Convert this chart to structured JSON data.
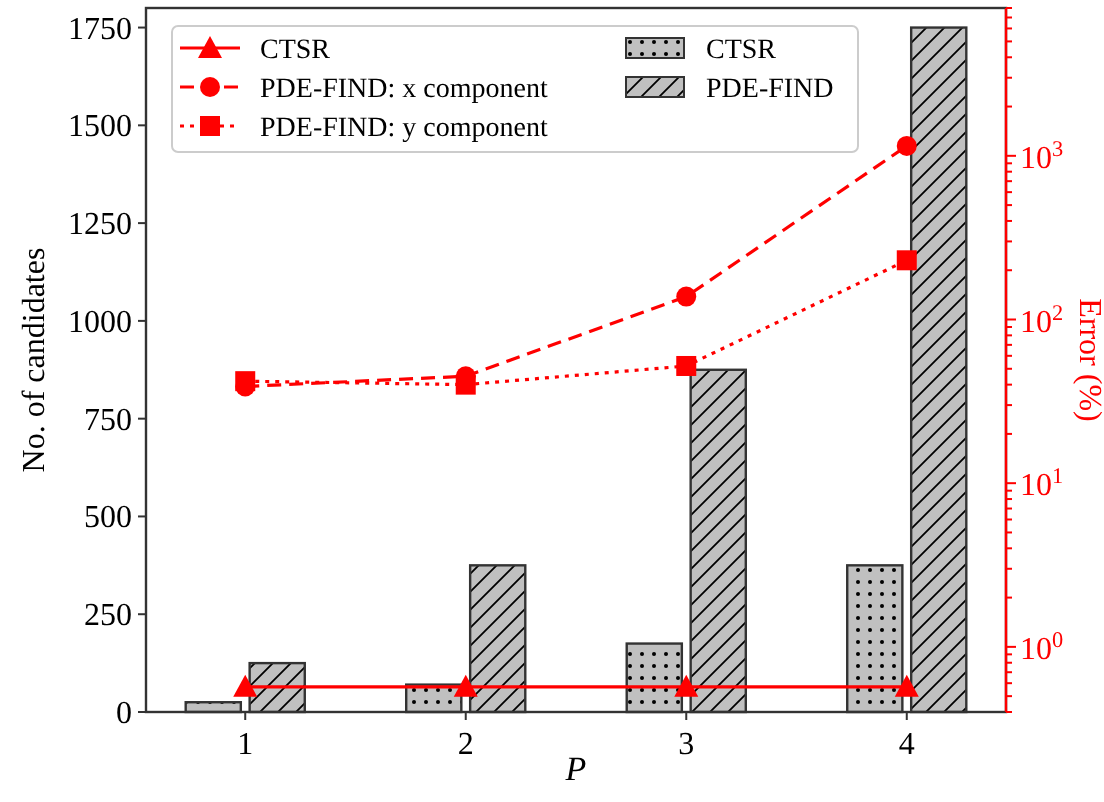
{
  "chart_data": {
    "type": "bar",
    "xlabel": "P",
    "ylabel": "No. of candidates",
    "y2label": "Error (%)",
    "x": [
      1,
      2,
      3,
      4
    ],
    "xlim": [
      0.55,
      4.45
    ],
    "xticks": [
      1,
      2,
      3,
      4
    ],
    "ylim": [
      0,
      1800
    ],
    "yticks": [
      0,
      250,
      500,
      750,
      1000,
      1250,
      1500,
      1750
    ],
    "y2lim": [
      0.4,
      8000
    ],
    "log": "y2",
    "y2ticks": [
      {
        "value": 0.4,
        "label": null
      },
      {
        "value": 0.5,
        "label": null
      },
      {
        "value": 0.6,
        "label": null
      },
      {
        "value": 0.7,
        "label": null
      },
      {
        "value": 0.8,
        "label": null
      },
      {
        "value": 0.9,
        "label": null
      },
      {
        "value": 1,
        "label": "10$^{0}$"
      },
      {
        "value": 2,
        "label": null
      },
      {
        "value": 3,
        "label": null
      },
      {
        "value": 4,
        "label": null
      },
      {
        "value": 5,
        "label": null
      },
      {
        "value": 6,
        "label": null
      },
      {
        "value": 7,
        "label": null
      },
      {
        "value": 8,
        "label": null
      },
      {
        "value": 9,
        "label": null
      },
      {
        "value": 10,
        "label": "10$^{1}$"
      },
      {
        "value": 20,
        "label": null
      },
      {
        "value": 30,
        "label": null
      },
      {
        "value": 40,
        "label": null
      },
      {
        "value": 50,
        "label": null
      },
      {
        "value": 60,
        "label": null
      },
      {
        "value": 70,
        "label": null
      },
      {
        "value": 80,
        "label": null
      },
      {
        "value": 90,
        "label": null
      },
      {
        "value": 100,
        "label": "10$^{2}$"
      },
      {
        "value": 200,
        "label": null
      },
      {
        "value": 300,
        "label": null
      },
      {
        "value": 400,
        "label": null
      },
      {
        "value": 500,
        "label": null
      },
      {
        "value": 600,
        "label": null
      },
      {
        "value": 700,
        "label": null
      },
      {
        "value": 800,
        "label": null
      },
      {
        "value": 900,
        "label": null
      },
      {
        "value": 1000,
        "label": "10$^{3}$"
      },
      {
        "value": 2000,
        "label": null
      },
      {
        "value": 3000,
        "label": null
      },
      {
        "value": 4000,
        "label": null
      },
      {
        "value": 5000,
        "label": null
      },
      {
        "value": 6000,
        "label": null
      },
      {
        "value": 7000,
        "label": null
      },
      {
        "value": 8000,
        "label": null
      }
    ],
    "grid": false,
    "legend": "top",
    "series": [
      {
        "type": "line",
        "axis": "y2",
        "name": "CTSR",
        "color": "#ff0000",
        "marker": "triangle",
        "line_style": "solid",
        "values": [
          0.57,
          0.57,
          0.57,
          0.57
        ]
      },
      {
        "type": "line",
        "axis": "y2",
        "name": "PDE-FIND: x component",
        "color": "#ff0000",
        "marker": "circle",
        "line_style": "dashed",
        "values": [
          39,
          45,
          138,
          1150
        ]
      },
      {
        "type": "line",
        "axis": "y2",
        "name": "PDE-FIND: y component",
        "color": "#ff0000",
        "marker": "square",
        "line_style": "dotted",
        "values": [
          42,
          40,
          52,
          230
        ]
      },
      {
        "name": "CTSR",
        "color": "#c0c0c0",
        "values": [
          25,
          70,
          175,
          375
        ]
      },
      {
        "name": "PDE-FIND",
        "color": "#c0c0c0",
        "values": [
          125,
          375,
          875,
          1750
        ]
      }
    ]
  }
}
